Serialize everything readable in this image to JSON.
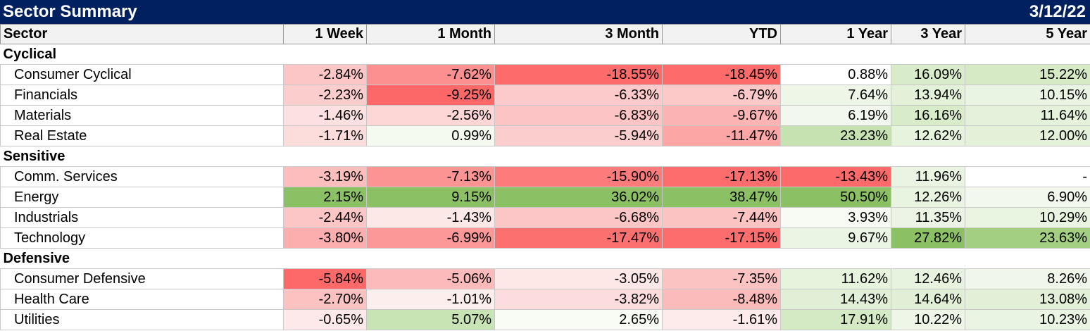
{
  "title": "Sector Summary",
  "date": "3/12/22",
  "columns": [
    "Sector",
    "1 Week",
    "1 Month",
    "3 Month",
    "YTD",
    "1 Year",
    "3 Year",
    "5 Year"
  ],
  "groups": [
    {
      "name": "Cyclical",
      "rows": [
        {
          "sector": "Consumer Cyclical",
          "values": [
            "-2.84%",
            "-7.62%",
            "-18.55%",
            "-18.45%",
            "0.88%",
            "16.09%",
            "15.22%"
          ],
          "colors": [
            "#fcc6c6",
            "#fc8f8f",
            "#fd6b6b",
            "#fd6b6b",
            "#ffffff",
            "#d8ecc9",
            "#d5eac5"
          ]
        },
        {
          "sector": "Financials",
          "values": [
            "-2.23%",
            "-9.25%",
            "-6.33%",
            "-6.79%",
            "7.64%",
            "13.94%",
            "10.15%"
          ],
          "colors": [
            "#fccdcd",
            "#fc6868",
            "#fccaca",
            "#fcc8c8",
            "#eef6e8",
            "#e3f1d8",
            "#eaf4e3"
          ]
        },
        {
          "sector": "Materials",
          "values": [
            "-1.46%",
            "-2.56%",
            "-6.83%",
            "-9.67%",
            "6.19%",
            "16.16%",
            "11.64%"
          ],
          "colors": [
            "#fde0e0",
            "#fdd6d6",
            "#fcc4c4",
            "#fcb3b3",
            "#f2f8ee",
            "#d8ecc9",
            "#e5f2db"
          ]
        },
        {
          "sector": "Real Estate",
          "values": [
            "-1.71%",
            "0.99%",
            "-5.94%",
            "-11.47%",
            "23.23%",
            "12.62%",
            "12.00%"
          ],
          "colors": [
            "#fddcdc",
            "#f4faf0",
            "#fccdcd",
            "#fca6a6",
            "#c6e2b0",
            "#e6f3dd",
            "#e3f1d9"
          ]
        }
      ]
    },
    {
      "name": "Sensitive",
      "rows": [
        {
          "sector": "Comm. Services",
          "values": [
            "-3.19%",
            "-7.13%",
            "-15.90%",
            "-17.13%",
            "-13.43%",
            "11.96%",
            "-"
          ],
          "colors": [
            "#fcbdbd",
            "#fc9494",
            "#fd7b7b",
            "#fd6d6d",
            "#fd6a6a",
            "#eaf4e3",
            "#ffffff"
          ]
        },
        {
          "sector": "Energy",
          "values": [
            "2.15%",
            "9.15%",
            "36.02%",
            "38.47%",
            "50.50%",
            "12.26%",
            "6.90%"
          ],
          "colors": [
            "#8bc064",
            "#8bc064",
            "#8bc064",
            "#8bc064",
            "#8bc064",
            "#e8f4e0",
            "#f2f8ec"
          ]
        },
        {
          "sector": "Industrials",
          "values": [
            "-2.44%",
            "-1.43%",
            "-6.68%",
            "-7.44%",
            "3.93%",
            "11.35%",
            "10.29%"
          ],
          "colors": [
            "#fcc6c6",
            "#fde8e8",
            "#fcc6c6",
            "#fcc3c3",
            "#f7fbf4",
            "#ecf5e5",
            "#e9f4e1"
          ]
        },
        {
          "sector": "Technology",
          "values": [
            "-3.80%",
            "-6.99%",
            "-17.47%",
            "-17.15%",
            "9.67%",
            "27.82%",
            "23.63%"
          ],
          "colors": [
            "#fcaeae",
            "#fc9898",
            "#fd7070",
            "#fd6d6d",
            "#ebf5e4",
            "#8bc064",
            "#a3cf82"
          ]
        }
      ]
    },
    {
      "name": "Defensive",
      "rows": [
        {
          "sector": "Consumer Defensive",
          "values": [
            "-5.84%",
            "-5.06%",
            "-3.05%",
            "-7.35%",
            "11.62%",
            "12.46%",
            "8.26%"
          ],
          "colors": [
            "#fd6868",
            "#fcbaba",
            "#fde7e7",
            "#fcc3c3",
            "#e6f3dd",
            "#e7f3de",
            "#f0f7ea"
          ]
        },
        {
          "sector": "Health Care",
          "values": [
            "-2.70%",
            "-1.01%",
            "-3.82%",
            "-8.48%",
            "14.43%",
            "14.64%",
            "13.08%"
          ],
          "colors": [
            "#fcc1c1",
            "#fdeeee",
            "#fcdcdc",
            "#fcbbbb",
            "#e0efd5",
            "#e0efd5",
            "#e1f0d7"
          ]
        },
        {
          "sector": "Utilities",
          "values": [
            "-0.65%",
            "5.07%",
            "2.65%",
            "-1.61%",
            "17.91%",
            "10.22%",
            "10.23%"
          ],
          "colors": [
            "#fde9e9",
            "#c8e3b4",
            "#f8fcf5",
            "#fdeaea",
            "#d4eac4",
            "#eef6e8",
            "#eaf4e3"
          ]
        }
      ]
    }
  ]
}
